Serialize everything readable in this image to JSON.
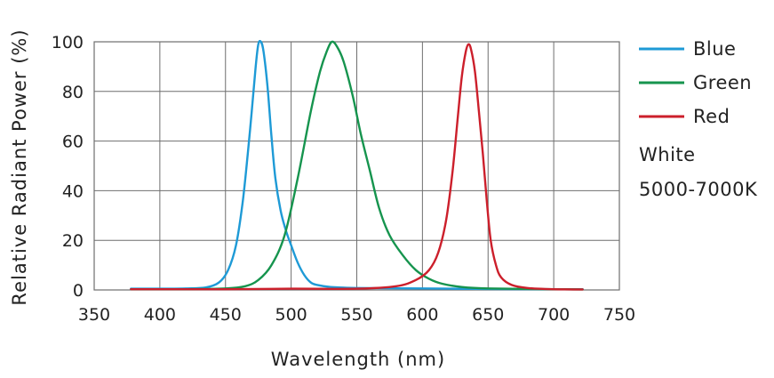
{
  "chart_data": {
    "type": "line",
    "xlabel": "Wavelength (nm)",
    "ylabel": "Relative Radiant Power (%)",
    "xlim": [
      350,
      750
    ],
    "ylim": [
      0,
      100
    ],
    "x_ticks": [
      350,
      400,
      450,
      500,
      550,
      600,
      650,
      700,
      750
    ],
    "y_ticks": [
      0,
      20,
      40,
      60,
      80,
      100
    ],
    "grid": true,
    "legend_position": "right",
    "series": [
      {
        "name": "Blue",
        "color": "#1e9ad6",
        "points": [
          [
            378,
            0.5
          ],
          [
            400,
            0.5
          ],
          [
            420,
            0.6
          ],
          [
            435,
            1
          ],
          [
            445,
            3
          ],
          [
            452,
            8
          ],
          [
            458,
            18
          ],
          [
            463,
            35
          ],
          [
            467,
            55
          ],
          [
            470,
            72
          ],
          [
            473,
            90
          ],
          [
            475,
            99
          ],
          [
            477,
            100
          ],
          [
            479,
            96
          ],
          [
            482,
            82
          ],
          [
            485,
            62
          ],
          [
            488,
            45
          ],
          [
            492,
            32
          ],
          [
            496,
            24
          ],
          [
            500,
            18
          ],
          [
            505,
            11
          ],
          [
            510,
            6
          ],
          [
            515,
            3
          ],
          [
            520,
            2
          ],
          [
            530,
            1.2
          ],
          [
            550,
            0.8
          ],
          [
            600,
            0.6
          ],
          [
            650,
            0.4
          ],
          [
            700,
            0.3
          ],
          [
            722,
            0.3
          ]
        ]
      },
      {
        "name": "Green",
        "color": "#16944e",
        "points": [
          [
            378,
            0.3
          ],
          [
            420,
            0.3
          ],
          [
            450,
            0.6
          ],
          [
            465,
            1.5
          ],
          [
            475,
            4
          ],
          [
            485,
            10
          ],
          [
            495,
            22
          ],
          [
            505,
            45
          ],
          [
            515,
            72
          ],
          [
            522,
            88
          ],
          [
            527,
            96
          ],
          [
            531,
            100
          ],
          [
            535,
            98
          ],
          [
            540,
            92
          ],
          [
            547,
            78
          ],
          [
            553,
            63
          ],
          [
            560,
            48
          ],
          [
            567,
            33
          ],
          [
            575,
            22
          ],
          [
            585,
            14
          ],
          [
            595,
            8
          ],
          [
            605,
            4.5
          ],
          [
            615,
            2.5
          ],
          [
            630,
            1.2
          ],
          [
            650,
            0.6
          ],
          [
            700,
            0.3
          ],
          [
            722,
            0.2
          ]
        ]
      },
      {
        "name": "Red",
        "color": "#cc1f2b",
        "points": [
          [
            378,
            0.3
          ],
          [
            450,
            0.3
          ],
          [
            500,
            0.5
          ],
          [
            550,
            0.5
          ],
          [
            580,
            1.5
          ],
          [
            595,
            4
          ],
          [
            605,
            8
          ],
          [
            612,
            15
          ],
          [
            618,
            28
          ],
          [
            623,
            48
          ],
          [
            627,
            70
          ],
          [
            630,
            86
          ],
          [
            633,
            96
          ],
          [
            635,
            99
          ],
          [
            637,
            97
          ],
          [
            640,
            88
          ],
          [
            643,
            72
          ],
          [
            646,
            55
          ],
          [
            649,
            36
          ],
          [
            652,
            20
          ],
          [
            656,
            10
          ],
          [
            660,
            5
          ],
          [
            668,
            2
          ],
          [
            680,
            0.8
          ],
          [
            700,
            0.3
          ],
          [
            722,
            0.2
          ]
        ]
      }
    ],
    "annotations": [
      "White",
      "5000-7000K"
    ]
  }
}
